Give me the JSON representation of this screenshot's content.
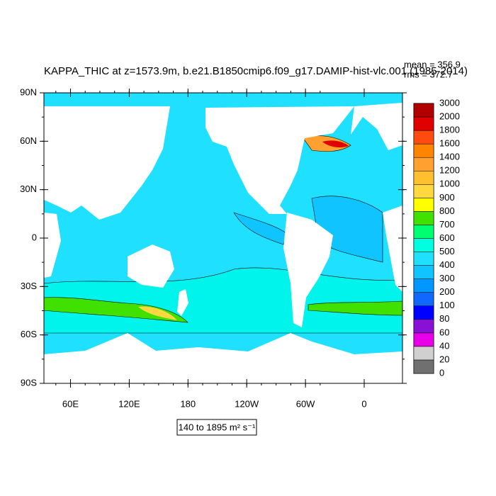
{
  "title": "KAPPA_THIC at z=1573.9m, b.e21.B1850cmip6.f09_g17.DAMIP-hist-vlc.001 (1985-2014)",
  "stats": [
    "mean = 356.9",
    "rms = 372.7"
  ],
  "lat_labels": [
    "90N",
    "60N",
    "30N",
    "0",
    "30S",
    "60S",
    "90S"
  ],
  "lon_labels": [
    "60E",
    "120E",
    "180",
    "120W",
    "60W",
    "0"
  ],
  "range_label": "140 to 1895 m² s⁻¹",
  "colorbar": {
    "levels": [
      0,
      20,
      40,
      60,
      80,
      100,
      200,
      300,
      400,
      500,
      600,
      700,
      800,
      900,
      1000,
      1200,
      1400,
      1600,
      1800,
      2000,
      3000
    ],
    "colors": [
      "#707070",
      "#d0d0d0",
      "#e800e8",
      "#8a10d8",
      "#0000ff",
      "#1068ff",
      "#0098ff",
      "#10c4ff",
      "#20e0ff",
      "#00ffe0",
      "#00ff70",
      "#40e000",
      "#ffff00",
      "#ffd840",
      "#ffc030",
      "#ffa030",
      "#ff8400",
      "#ff4a10",
      "#e00000",
      "#b00000"
    ]
  }
}
